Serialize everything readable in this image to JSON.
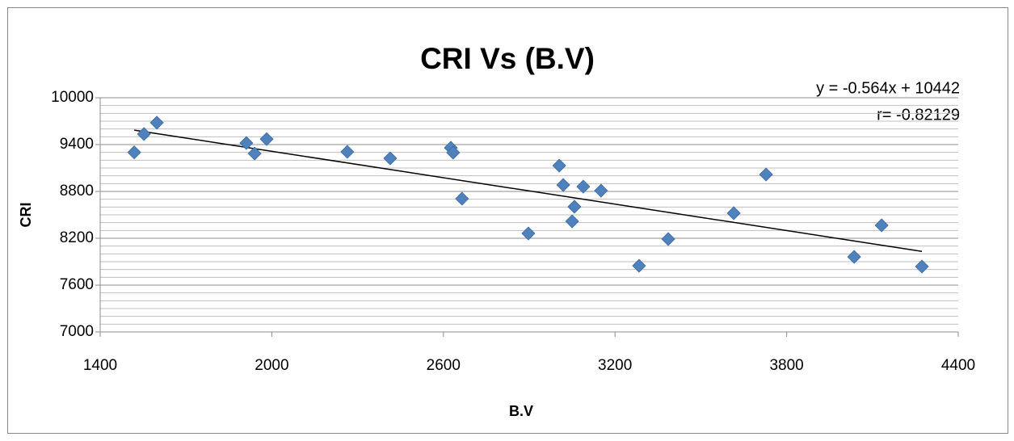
{
  "chart_data": {
    "type": "scatter",
    "title": "CRI Vs (B.V)",
    "x_label": "B.V",
    "y_label": "CRI",
    "annotations": [
      "y = -0.564x + 10442",
      "r= -0.82129"
    ],
    "trendline": {
      "slope": -0.564,
      "intercept": 10442
    },
    "series": [
      {
        "name": "CRI",
        "color": "#4f81bd",
        "x": [
          1519,
          1553,
          1598,
          1911,
          1940,
          1982,
          2264,
          2414,
          2626,
          2634,
          2665,
          2897,
          3005,
          3019,
          3058,
          3050,
          3089,
          3151,
          3284,
          3386,
          3615,
          3728,
          4036,
          4132,
          4273
        ],
        "values": [
          9300,
          9535,
          9680,
          9420,
          9285,
          9470,
          9307,
          9224,
          9359,
          9297,
          8707,
          8262,
          9131,
          8883,
          8604,
          8417,
          8862,
          8810,
          7848,
          8190,
          8521,
          9017,
          7962,
          8366,
          7838
        ]
      }
    ],
    "xlim": [
      1400,
      4400
    ],
    "xticks": [
      1400,
      2000,
      2600,
      3200,
      3800,
      4400
    ],
    "ylim": [
      7000,
      10000
    ],
    "yticks": [
      7000,
      7600,
      8200,
      8800,
      9400,
      10000
    ],
    "grid": true,
    "minor_grid": true
  }
}
